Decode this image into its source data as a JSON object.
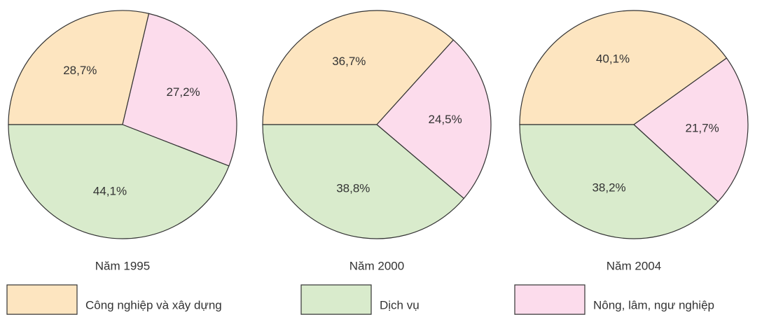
{
  "chart_data": [
    {
      "type": "pie",
      "title": "Năm 1995",
      "values": [
        28.7,
        27.2,
        44.1
      ],
      "value_labels": [
        "28,7%",
        "27,2%",
        "44,1%"
      ]
    },
    {
      "type": "pie",
      "title": "Năm 2000",
      "values": [
        36.7,
        24.5,
        38.8
      ],
      "value_labels": [
        "36,7%",
        "24,5%",
        "38,8%"
      ]
    },
    {
      "type": "pie",
      "title": "Năm 2004",
      "values": [
        40.1,
        21.7,
        38.2
      ],
      "value_labels": [
        "40,1%",
        "21,7%",
        "38,2%"
      ]
    }
  ],
  "legend": {
    "categories": [
      "Công nghiệp và xây dựng",
      "Nông, lâm, ngư nghiệp",
      "Dịch vụ"
    ],
    "colors": [
      "#fde5c0",
      "#fcdcec",
      "#d9ebcc"
    ]
  }
}
